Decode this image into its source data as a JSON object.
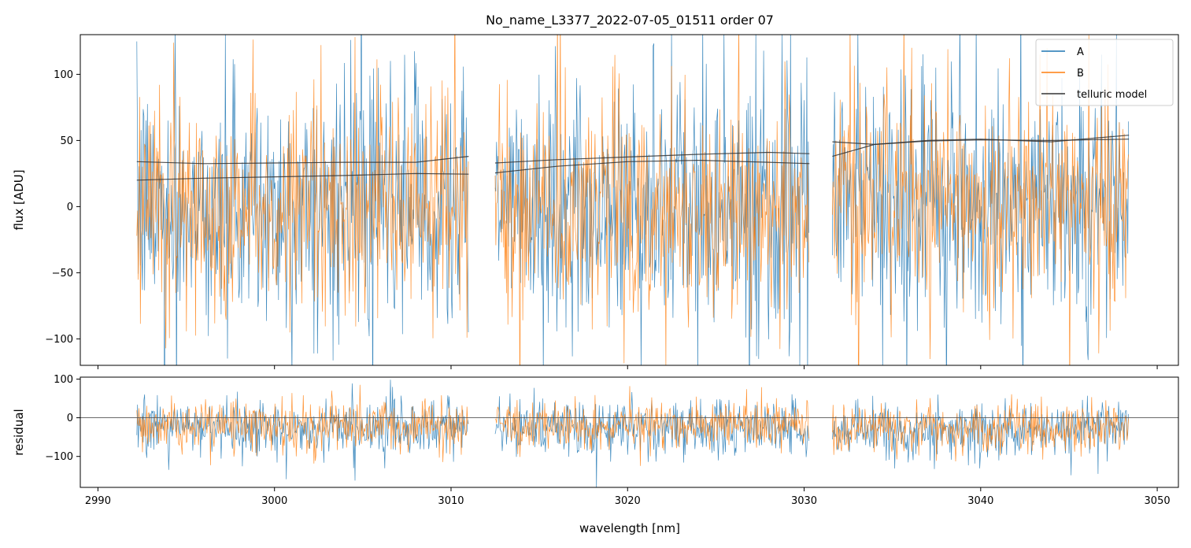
{
  "chart_data": [
    {
      "panel": "main",
      "type": "line",
      "title": "No_name_L3377_2022-07-05_01511  order 07",
      "xlabel": "",
      "ylabel": "flux [ADU]",
      "xlim": [
        2989.0,
        3051.2
      ],
      "ylim": [
        -120,
        130
      ],
      "yticks": [
        100,
        50,
        0,
        -50,
        -100
      ],
      "yticklabels": [
        "100",
        "50",
        "0",
        "−50",
        "−100"
      ],
      "xticks": [
        2990,
        3000,
        3010,
        3020,
        3030,
        3040,
        3050
      ],
      "grid": false,
      "legend": {
        "placement": "top-right",
        "entries": [
          {
            "label": "A",
            "color": "#1f77b4"
          },
          {
            "label": "B",
            "color": "#ff7f0e"
          },
          {
            "label": "telluric model",
            "color": "#333333"
          }
        ]
      },
      "segments": [
        {
          "x_start": 2992.2,
          "x_end": 3011.0
        },
        {
          "x_start": 3012.5,
          "x_end": 3030.3
        },
        {
          "x_start": 3031.6,
          "x_end": 3048.4
        }
      ],
      "series": [
        {
          "name": "A",
          "color": "#1f77b4",
          "noise_level": {
            "mean": 0,
            "std": 45
          }
        },
        {
          "name": "B",
          "color": "#ff7f0e",
          "noise_level": {
            "mean": 0,
            "std": 40
          }
        }
      ],
      "telluric_model": [
        {
          "x": [
            2992.2,
            2996,
            3000,
            3004,
            3008,
            3011.0
          ],
          "y": [
            34,
            32.5,
            33,
            33.5,
            33.5,
            38
          ]
        },
        {
          "x": [
            2992.2,
            2996,
            3000,
            3004,
            3008,
            3011.0
          ],
          "y": [
            20,
            21.5,
            22.5,
            23.5,
            25,
            24.5
          ]
        },
        {
          "x": [
            3012.5,
            3016,
            3020,
            3024,
            3028,
            3030.3
          ],
          "y": [
            33,
            35.5,
            37.5,
            39.5,
            41,
            40
          ]
        },
        {
          "x": [
            3012.5,
            3016,
            3020,
            3024,
            3028,
            3030.3
          ],
          "y": [
            25.5,
            30.5,
            34,
            35,
            33.5,
            32.5
          ]
        },
        {
          "x": [
            3031.6,
            3034,
            3037,
            3040,
            3044,
            3048.4
          ],
          "y": [
            49,
            47,
            49.5,
            50.5,
            50,
            51
          ]
        },
        {
          "x": [
            3031.6,
            3034,
            3037,
            3040,
            3044,
            3048.4
          ],
          "y": [
            38,
            47,
            50,
            51,
            49,
            54
          ]
        }
      ]
    },
    {
      "panel": "residual",
      "type": "line",
      "xlabel": "wavelength [nm]",
      "ylabel": "residual",
      "xlim": [
        2989.0,
        3051.2
      ],
      "ylim": [
        -180,
        105
      ],
      "yticks": [
        100,
        0,
        -100
      ],
      "yticklabels": [
        "100",
        "0",
        "−100"
      ],
      "xticks": [
        2990,
        3000,
        3010,
        3020,
        3030,
        3040,
        3050
      ],
      "xticklabels": [
        "2990",
        "3000",
        "3010",
        "3020",
        "3030",
        "3040",
        "3050"
      ],
      "grid": false,
      "reference_line": 0,
      "series": [
        {
          "name": "A",
          "color": "#1f77b4",
          "noise_level": {
            "mean": -25,
            "std": 35
          }
        },
        {
          "name": "B",
          "color": "#ff7f0e",
          "noise_level": {
            "mean": -20,
            "std": 30
          }
        }
      ]
    }
  ]
}
